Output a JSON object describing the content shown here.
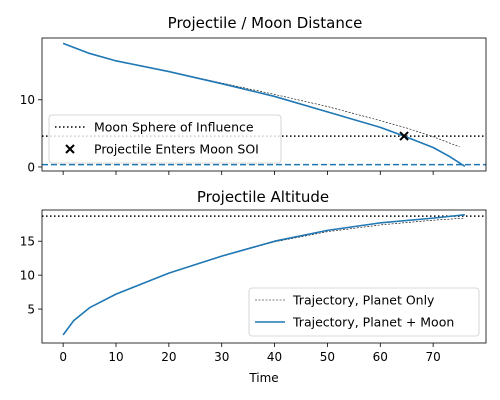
{
  "chart_data": [
    {
      "type": "line",
      "title": "Projectile / Moon Distance",
      "xlabel": "",
      "ylabel": "",
      "xlim": [
        -4,
        80
      ],
      "ylim": [
        -0.6,
        19.2
      ],
      "xticks": [
        0,
        10,
        20,
        30,
        40,
        50,
        60,
        70
      ],
      "show_xtick_labels": false,
      "yticks": [
        0,
        10
      ],
      "grid": false,
      "legend_placement": "center-left",
      "series": [
        {
          "name": "",
          "style": "thin-dashed-black",
          "color": "#000000",
          "x": [
            0,
            5,
            10,
            20,
            30,
            40,
            50,
            60,
            65,
            70,
            75
          ],
          "y": [
            18.4,
            16.9,
            15.8,
            14.2,
            12.5,
            10.8,
            9.0,
            6.9,
            5.8,
            4.5,
            3.0
          ]
        },
        {
          "name": "",
          "style": "solid",
          "color": "#1f77b4",
          "x": [
            0,
            5,
            10,
            20,
            30,
            40,
            50,
            60,
            64.5,
            70,
            73,
            75,
            76
          ],
          "y": [
            18.4,
            16.9,
            15.8,
            14.2,
            12.4,
            10.5,
            8.2,
            5.9,
            4.6,
            2.9,
            1.6,
            0.6,
            0.1
          ]
        }
      ],
      "hlines": [
        {
          "name": "Moon Sphere of Influence",
          "y": 4.6,
          "style": "dotted",
          "color": "#000000"
        },
        {
          "name": "",
          "y": 0.35,
          "style": "dashed",
          "color": "#1f77b4"
        }
      ],
      "markers": [
        {
          "name": "Projectile Enters Moon SOI",
          "x": 64.5,
          "y": 4.6,
          "marker": "x",
          "color": "#000000"
        }
      ]
    },
    {
      "type": "line",
      "title": "Projectile Altitude",
      "xlabel": "Time",
      "ylabel": "",
      "xlim": [
        -4,
        80
      ],
      "ylim": [
        0,
        19.6
      ],
      "xticks": [
        0,
        10,
        20,
        30,
        40,
        50,
        60,
        70
      ],
      "show_xtick_labels": true,
      "yticks": [
        5,
        10,
        15
      ],
      "grid": false,
      "legend_placement": "lower-right",
      "series": [
        {
          "name": "Trajectory, Planet Only",
          "style": "thin-dashed-black",
          "color": "#000000",
          "x": [
            0,
            2,
            5,
            10,
            20,
            30,
            40,
            50,
            60,
            70,
            76
          ],
          "y": [
            1.2,
            3.3,
            5.2,
            7.2,
            10.3,
            12.8,
            14.9,
            16.4,
            17.4,
            18.1,
            18.4
          ]
        },
        {
          "name": "Trajectory, Planet + Moon",
          "style": "solid",
          "color": "#1f77b4",
          "x": [
            0,
            2,
            5,
            10,
            20,
            30,
            40,
            50,
            60,
            70,
            76
          ],
          "y": [
            1.2,
            3.3,
            5.2,
            7.2,
            10.3,
            12.8,
            15.0,
            16.6,
            17.7,
            18.4,
            18.9
          ]
        }
      ],
      "hlines": [
        {
          "name": "",
          "y": 18.7,
          "style": "dotted",
          "color": "#000000"
        }
      ]
    }
  ]
}
